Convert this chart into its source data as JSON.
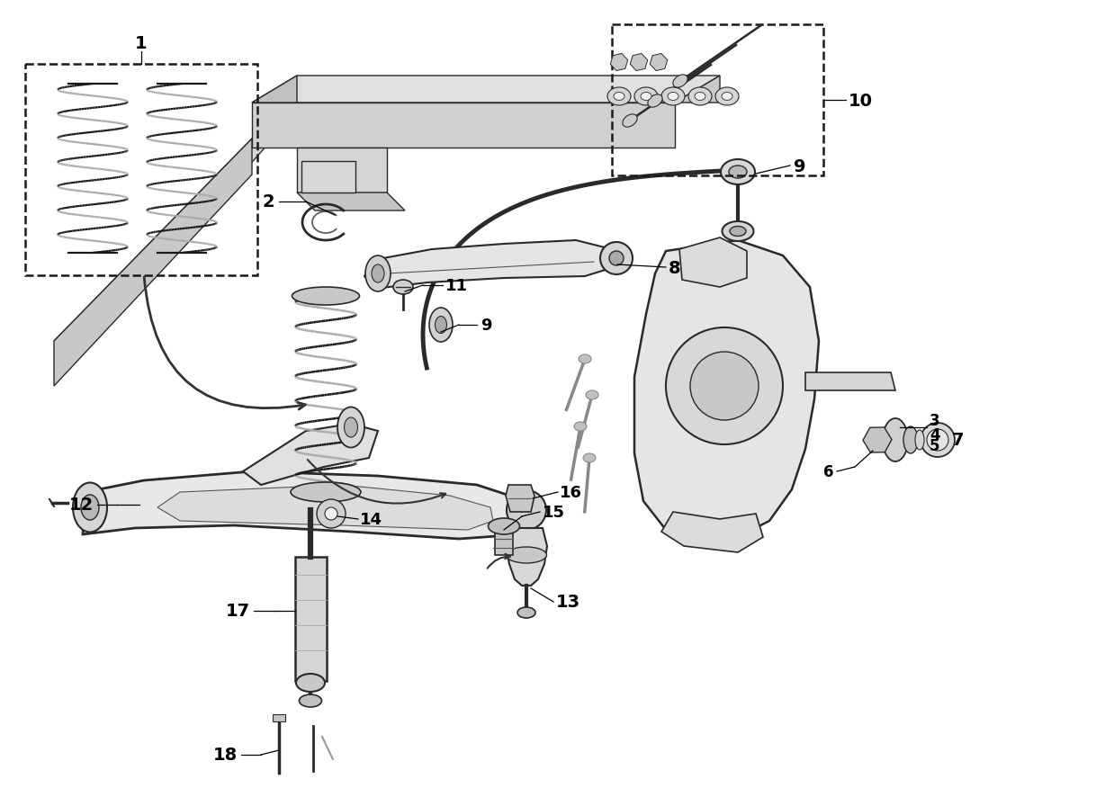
{
  "bg_color": "#ffffff",
  "line_color": "#2a2a2a",
  "part_fill": "#e8e8e8",
  "part_fill_light": "#f0f0f0",
  "part_fill_dark": "#d0d0d0",
  "part_stroke": "#555555",
  "label_color": "#000000",
  "label_fontsize": 13,
  "dashed_box_color": "#222222",
  "figsize": [
    12.18,
    8.87
  ],
  "dpi": 100
}
